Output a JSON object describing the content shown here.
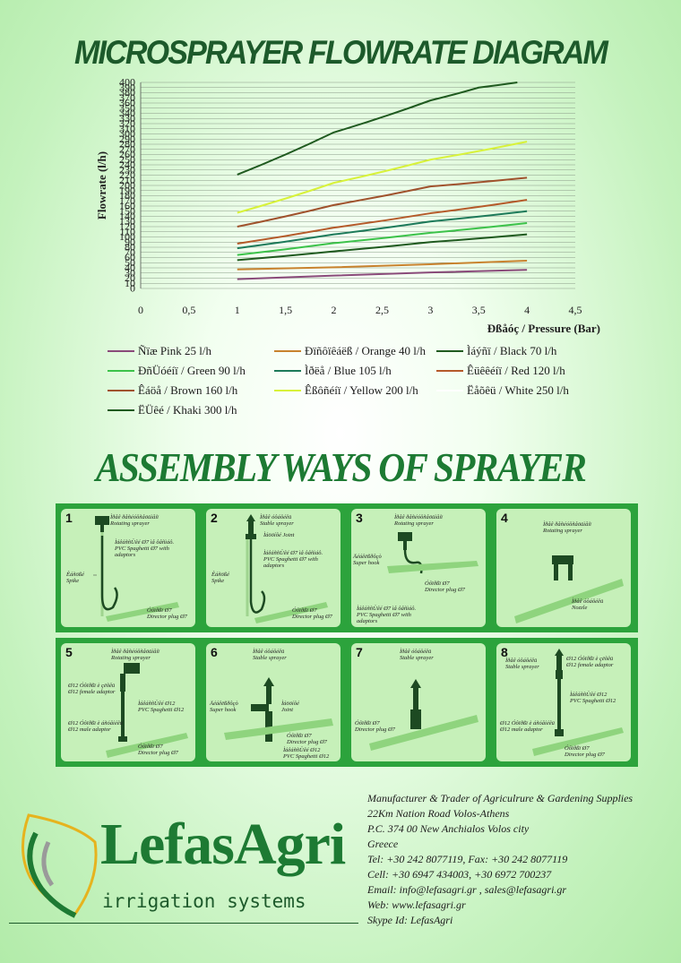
{
  "header": {
    "title": "MICROSPRAYER FLOWRATE DIAGRAM"
  },
  "chart_data": {
    "type": "line",
    "ylabel": "Flowrate (l/h)",
    "xlabel": "Ðßåóç / Pressure (Bar)",
    "xlim": [
      0,
      4.5
    ],
    "ylim": [
      0,
      400
    ],
    "grid": true,
    "legend_position": "bottom",
    "x_ticks": [
      "0",
      "0,5",
      "1",
      "1,5",
      "2",
      "2,5",
      "3",
      "3,5",
      "4",
      "4,5"
    ],
    "y_ticks": [
      "0",
      "10",
      "20",
      "30",
      "40",
      "50",
      "60",
      "70",
      "80",
      "90",
      "100",
      "110",
      "120",
      "130",
      "140",
      "150",
      "160",
      "170",
      "180",
      "190",
      "200",
      "210",
      "220",
      "230",
      "240",
      "250",
      "260",
      "270",
      "280",
      "290",
      "300",
      "310",
      "320",
      "330",
      "340",
      "350",
      "360",
      "370",
      "380",
      "390",
      "400"
    ],
    "series": [
      {
        "name": "Ñïæ Pink 25 l/h",
        "color": "#8a4a7a",
        "x": [
          1,
          2,
          3,
          4
        ],
        "y": [
          18,
          25,
          31,
          36
        ]
      },
      {
        "name": "Ðïñôïêáëß / Orange 40 l/h",
        "color": "#c8822e",
        "x": [
          1,
          2,
          3,
          4
        ],
        "y": [
          37,
          41,
          47,
          54
        ]
      },
      {
        "name": "Ìáýñï / Black 70 l/h",
        "color": "#1f5a1f",
        "x": [
          1,
          2,
          3,
          4
        ],
        "y": [
          55,
          72,
          90,
          105
        ]
      },
      {
        "name": "ÐñÜóéíï / Green 90 l/h",
        "color": "#3cc24a",
        "x": [
          1,
          2,
          3,
          4
        ],
        "y": [
          65,
          88,
          108,
          127
        ]
      },
      {
        "name": "Ìðëå / Blue 105 l/h",
        "color": "#1d7a5a",
        "x": [
          1,
          2,
          3,
          4
        ],
        "y": [
          78,
          105,
          130,
          150
        ]
      },
      {
        "name": "Êüêêéíï / Red 120 l/h",
        "color": "#b55a2a",
        "x": [
          1,
          2,
          3,
          4
        ],
        "y": [
          87,
          118,
          146,
          172
        ]
      },
      {
        "name": "Êáöå / Brown 160 l/h",
        "color": "#a0522d",
        "x": [
          1,
          2,
          3,
          4
        ],
        "y": [
          120,
          162,
          198,
          215
        ]
      },
      {
        "name": "Êßôñéíï / Yellow 200 l/h",
        "color": "#d8f23a",
        "x": [
          1,
          2,
          3,
          4
        ],
        "y": [
          147,
          205,
          250,
          285
        ]
      },
      {
        "name": "Ëåõêü / White 250 l/h",
        "color": "#ffffff",
        "x": [],
        "y": []
      },
      {
        "name": "ËÜêé / Khaki 300 l/h",
        "color": "#1f5a1f",
        "x": [
          1,
          2,
          3,
          3.5,
          3.9
        ],
        "y": [
          221,
          303,
          365,
          390,
          400
        ]
      }
    ]
  },
  "assembly": {
    "title": "ASSEMBLY WAYS OF SPRAYER",
    "panels": [
      {
        "num": "1",
        "labels": [
          "Ìðåê ðåñéóôñåöüìåíï",
          "Rotating sprayer",
          "ÌáêáññÜêé Ø7 ìå ôåñìáô.",
          "PVC Spaghetti Ø7 with",
          "adaptors",
          "Êáñößé",
          "Spike",
          "Óôïðßï Ø7",
          "Director plug Ø7"
        ]
      },
      {
        "num": "2",
        "labels": [
          "Ìðåê óôáôéêü",
          "Stable sprayer",
          "Ìáööíôé Joint",
          "ÌáêáññÜêé Ø7 ìå ôåñìáô.",
          "PVC Spaghetti Ø7 with",
          "adaptors",
          "Êáñößé",
          "Spike",
          "Óôïðßï Ø7",
          "Director plug Ø7"
        ]
      },
      {
        "num": "3",
        "labels": [
          "Ìðåê ðåñéóôñåöüìåíï",
          "Rotating sprayer",
          "Äéáêëßðôçò",
          "Super hook",
          "Óôïðßï Ø7",
          "Director plug Ø7",
          "ÌáêáññÜêé Ø7 ìå ôåñìáô.",
          "PVC Spaghetti Ø7 with",
          "adaptors"
        ]
      },
      {
        "num": "4",
        "labels": [
          "Ìðåê ðåñéóôñåöüìåíï",
          "Rotating sprayer",
          "Ìðåê óôáôéêü",
          "Nozzle"
        ]
      },
      {
        "num": "5",
        "labels": [
          "Ìðåê ðåñéóôñåöüìåíï",
          "Rotating sprayer",
          "Ø12 Óôïðßï è çëõêü",
          "Ø12 female adaptor",
          "ÌáêáññÜêé Ø12",
          "PVC Spaghetti Ø12",
          "Ø12 Óôïðßï è áñóåíéêü",
          "Ø12 male adaptor",
          "Óôïðßï Ø7",
          "Director plug Ø7"
        ]
      },
      {
        "num": "6",
        "labels": [
          "Ìðåê óôáôéêü",
          "Stable sprayer",
          "Äéáêëßðôçò",
          "Super hook",
          "Ìáööíôé",
          "Joint",
          "Óôïðßï Ø7",
          "Director plug Ø7",
          "ÌáêáññÜêé Ø12",
          "PVC Spaghetti Ø12"
        ]
      },
      {
        "num": "7",
        "labels": [
          "Ìðåê óôáôéêü",
          "Stable sprayer",
          "Óôïðßï Ø7",
          "Director plug Ø7"
        ]
      },
      {
        "num": "8",
        "labels": [
          "Ìðåê óôáôéêü",
          "Stable sprayer",
          "Ø12 Óôïðßï è çëõêü",
          "Ø12 female adaptor",
          "ÌáêáññÜêé Ø12",
          "PVC Spaghetti Ø12",
          "Ø12 Óôïðßï è áñóåíéêü",
          "Ø12 male adaptor",
          "Óôïðßï Ø7",
          "Director plug Ø7"
        ]
      }
    ]
  },
  "company": {
    "lines": [
      "Manufacturer & Trader of Agriculrure & Gardening Supplies",
      "22Km Nation Road Volos-Athens",
      "P.C. 374 00 New Anchialos Volos city",
      "Greece",
      "Tel: +30 242 8077119, Fax: +30 242 8077119",
      "Cell: +30 6947 434003, +30 6972 700237",
      "Email: info@lefasagri.gr , sales@lefasagri.gr",
      "Web: www.lefasagri.gr",
      "Skype Id: LefasAgri"
    ]
  },
  "logo": {
    "name": "LefasAgri",
    "tagline": "irrigation systems"
  },
  "colors": {
    "green_dark": "#1d5a2b",
    "green_brand": "#1d7a33",
    "panel_band": "#2ca33c",
    "panel_bg": "#c6f0b9"
  }
}
